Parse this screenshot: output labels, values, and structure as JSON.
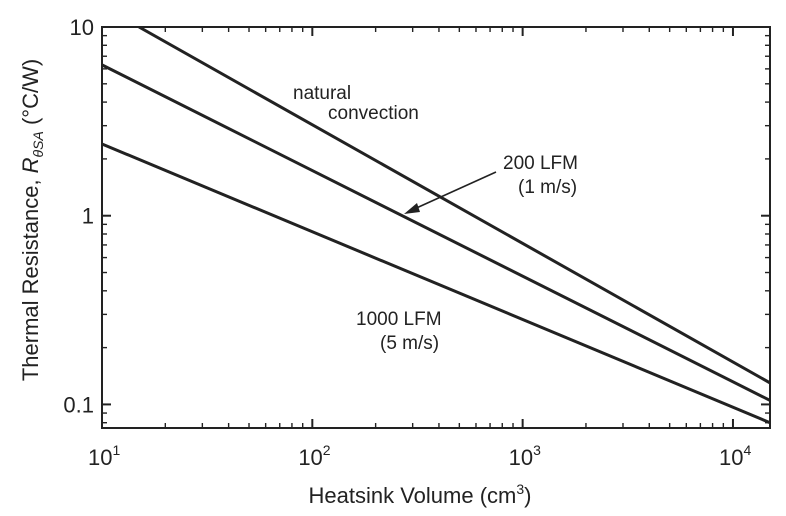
{
  "chart_data": {
    "type": "line",
    "xscale": "log",
    "yscale": "log",
    "xlim": [
      10,
      15000
    ],
    "ylim": [
      0.075,
      10
    ],
    "grid": false,
    "xlabel": {
      "main": "Heatsink Volume (cm",
      "sup": "3",
      "end": ")"
    },
    "ylabel": {
      "main": "Thermal Resistance, ",
      "symbol": "R",
      "sub": "θSA",
      "unit": " (°C/W)"
    },
    "x_ticks": [
      {
        "value": 10,
        "base": "10",
        "exp": "1"
      },
      {
        "value": 100,
        "base": "10",
        "exp": "2"
      },
      {
        "value": 1000,
        "base": "10",
        "exp": "3"
      },
      {
        "value": 10000,
        "base": "10",
        "exp": "4"
      }
    ],
    "y_ticks": [
      {
        "value": 10,
        "label": "10"
      },
      {
        "value": 1,
        "label": "1"
      },
      {
        "value": 0.1,
        "label": "0.1"
      }
    ],
    "series": [
      {
        "name": "natural convection",
        "x": [
          15,
          15000
        ],
        "y": [
          10,
          0.13
        ]
      },
      {
        "name": "200 LFM (1 m/s)",
        "x": [
          10,
          15000
        ],
        "y": [
          6.3,
          0.105
        ]
      },
      {
        "name": "1000 LFM (5 m/s)",
        "x": [
          10,
          15000
        ],
        "y": [
          2.4,
          0.08
        ]
      }
    ],
    "annotations": [
      {
        "lines": [
          "natural",
          "convection"
        ]
      },
      {
        "lines": [
          "200 LFM",
          "(1 m/s)"
        ]
      },
      {
        "lines": [
          "1000 LFM",
          "(5 m/s)"
        ]
      }
    ]
  }
}
